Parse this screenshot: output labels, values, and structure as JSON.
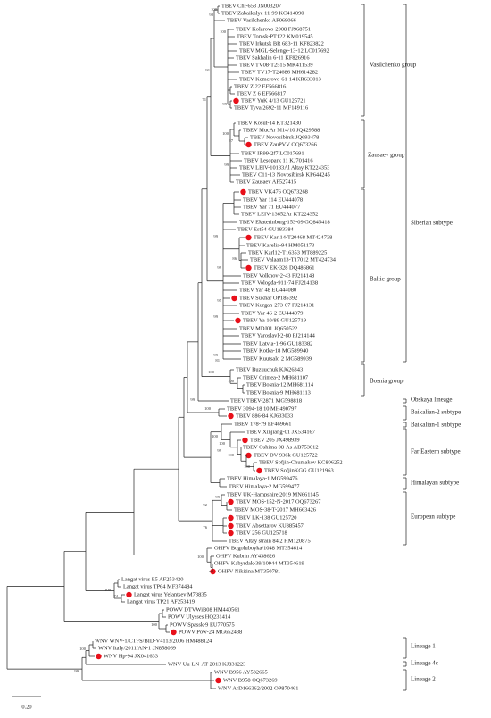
{
  "leaves": [
    {
      "label": "TBEV Cht-653 JN003207"
    },
    {
      "label": "TBEV Zabaikalye 11-99 KC414090"
    },
    {
      "label": "TBEV Vasilchenko AF069066"
    },
    {
      "label": "TBEV Kolarovo-2008 FJ968751"
    },
    {
      "label": "TBEV Tomsk-PT122 KM019545"
    },
    {
      "label": "TBEV Irkutsk BR 683-11 KF823822"
    },
    {
      "label": "TBEV MGL-Selenge-13-12 LC017692"
    },
    {
      "label": "TBEV Sakhalin 6-11 KF826916"
    },
    {
      "label": "TBEV TV08-T2515 MK411539"
    },
    {
      "label": "TBEV TV17-T24686 MH614282"
    },
    {
      "label": "TBEV Kemerovo-61-14 KR633013"
    },
    {
      "label": "TBEV Z 22 EF566816"
    },
    {
      "label": "TBEV Z 6 EF566817"
    },
    {
      "label": "TBEV YuK 4/13 GU125721"
    },
    {
      "label": "TBEV Tyva 2692-11 MF149116"
    },
    {
      "label": "TBEV Kosut-14 KT321430"
    },
    {
      "label": "TBEV MucAr M14/10 JQ429588"
    },
    {
      "label": "TBEV Novosibirsk JQ693478"
    },
    {
      "label": "TBEV ZauPVV OQ673266"
    },
    {
      "label": "TBEV IR99-2f7 LC017691"
    },
    {
      "label": "TBEV Lesopark 11 KJ701416"
    },
    {
      "label": "TBEV LEIV-10133Al Altay KT224353"
    },
    {
      "label": "TBEV C11-13 Novosibirsk KP644245"
    },
    {
      "label": "TBEV Zausaev AF527415"
    },
    {
      "label": "TBEV VK476 OQ673268"
    },
    {
      "label": "TBEV Yar 114 EU444078"
    },
    {
      "label": "TBEV Yar 71 EU444077"
    },
    {
      "label": "TBEV LEIV-13652Ar KT224352"
    },
    {
      "label": "TBEV Ekaterinburg-153-09 GQ845418"
    },
    {
      "label": "TBEV Est54 GU183384"
    },
    {
      "label": "TBEV Karl14-T20468 MT424738"
    },
    {
      "label": "TBEV Karelia-94 HM051173"
    },
    {
      "label": "TBEV Karl12-T16353 MT889225"
    },
    {
      "label": "TBEV Valaam13-T17012 MT424734"
    },
    {
      "label": "TBEV EK-328 DQ486861"
    },
    {
      "label": "TBEV Volkhov-2-43 FJ214148"
    },
    {
      "label": "TBEV Vologda-911-74 FJ214138"
    },
    {
      "label": "TBEV Yar 48 EU444080"
    },
    {
      "label": "TBEV Sukhar OP185392"
    },
    {
      "label": "TBEV Kurgan-273-07 FJ214131"
    },
    {
      "label": "TBEV Yar 46-2 EU444079"
    },
    {
      "label": "TBEV Ya 10/89 GU125719"
    },
    {
      "label": "TBEV MDJ01 JQ650522"
    },
    {
      "label": "TBEV Yaroslavl-2-80 FJ214144"
    },
    {
      "label": "TBEV Latvia-1-96 GU183382"
    },
    {
      "label": "TBEV Kotka-18 MG589940"
    },
    {
      "label": "TBEV Kuutsalo 2 MG589939"
    },
    {
      "label": "TBEV Buzuuchuk KJ626343"
    },
    {
      "label": "TBEV Crimea-2 MH681107"
    },
    {
      "label": "TBEV Bosnia-12 MH681114"
    },
    {
      "label": "TBEV Bosnia-9 MH681113"
    },
    {
      "label": "TBEV TBEV-2871 MG598818"
    },
    {
      "label": "TBEV 3094-18 10 MH490797"
    },
    {
      "label": "TBEV 886-84 KJ633033"
    },
    {
      "label": "TBEV 178-79 EF469661"
    },
    {
      "label": "TBEV Xinjiang-01 JX534167"
    },
    {
      "label": "TBEV 205 JX498939"
    },
    {
      "label": "TBEV Oshima 08-As AB753012"
    },
    {
      "label": "TBEV DV 936k GU125722"
    },
    {
      "label": "TBEV Sofjin-Chumakov KC806252"
    },
    {
      "label": "TBEV SofjinKGG GU121963"
    },
    {
      "label": "TBEV Himalaya-1 MG599476"
    },
    {
      "label": "TBEV Himalaya-2 MG599477"
    },
    {
      "label": "TBEV UK-Hampshire 2019 MN661145"
    },
    {
      "label": "TBEV MOS-152-N-2017 OQ673267"
    },
    {
      "label": "TBEV MOS-38-T-2017 MH663426"
    },
    {
      "label": "TBEV LK-138 GU125720"
    },
    {
      "label": "TBEV Absettarov KU885457"
    },
    {
      "label": "TBEV 256 GU125718"
    },
    {
      "label": "TBEV Altay strain 84.2 HM120875"
    },
    {
      "label": "OHFV Bogoluboyka/1048 MT354614"
    },
    {
      "label": "OHFV Kubrin AY438626"
    },
    {
      "label": "OHFV Kabyrdak-39/10944 MT354619"
    },
    {
      "label": "OHFV Nikitina MT350781"
    },
    {
      "label": "Langat virus E5 AF253420"
    },
    {
      "label": "Langat virus TP64 MF374484"
    },
    {
      "label": "Langat virus Yelantsev M73835"
    },
    {
      "label": "Langat virus TP21 AF253419"
    },
    {
      "label": "POWV DTVWiB08 HM440561"
    },
    {
      "label": "POWV Ulysses HQ231414"
    },
    {
      "label": "POWV Spassk-9 EU770575"
    },
    {
      "label": "POWV Pow-24 MG652438"
    },
    {
      "label": "WNV WNV-1/CTFS/BID-V4113/2006 HM488124"
    },
    {
      "label": "WNV Italy/2011/AN-1 JN858069"
    },
    {
      "label": "WNV Hp-94 JX041633"
    },
    {
      "label": "WNV Uu-LN-AT-2013 KJ831223"
    },
    {
      "label": "WNV B956 AY532665"
    },
    {
      "label": "WNV B958 OQ673269"
    },
    {
      "label": "WNV ArD166362/2002 OP870461"
    }
  ],
  "bootstraps": [
    100,
    98,
    91,
    71,
    100,
    99,
    100,
    97,
    99,
    99,
    86,
    99,
    95,
    99,
    99,
    81,
    100,
    100,
    100,
    99,
    100,
    100,
    99,
    100,
    100,
    76,
    92,
    99,
    100,
    100,
    74,
    100,
    100,
    99
  ],
  "groups": [
    {
      "label": "Vasilchenko group"
    },
    {
      "label": "Zausaev group"
    },
    {
      "label": "Baltic group"
    },
    {
      "label": "Siberian subtype"
    },
    {
      "label": "Bosnia group"
    },
    {
      "label": "Obskaya lineage"
    },
    {
      "label": "Baikalian-2 subtype"
    },
    {
      "label": "Baikalian-1 subtype"
    },
    {
      "label": "Far Eastern subtype"
    },
    {
      "label": "Himalayan subtype"
    },
    {
      "label": "European subtype"
    },
    {
      "label": "Lineage 1"
    },
    {
      "label": "Lineage 4c"
    },
    {
      "label": "Lineage 2"
    }
  ],
  "scale_bar": {
    "label": "0.20"
  }
}
